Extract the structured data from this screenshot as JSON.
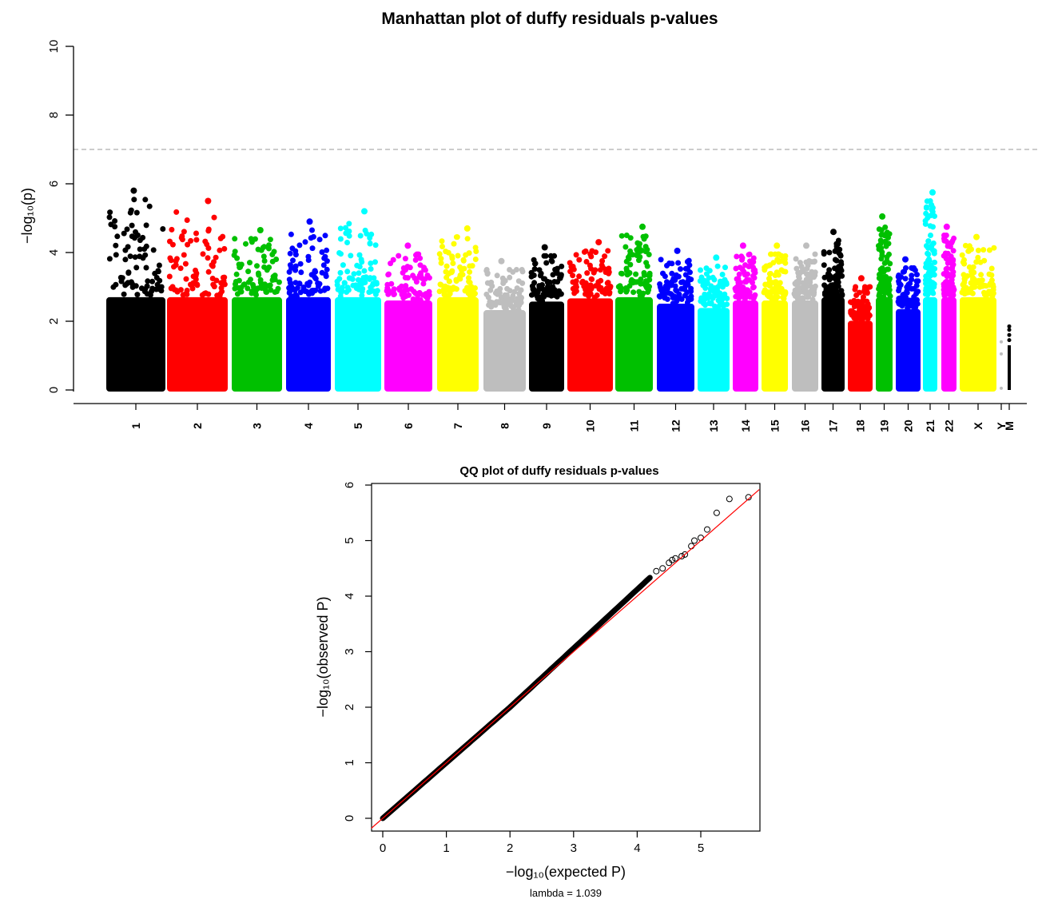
{
  "chart_data": [
    {
      "type": "scatter",
      "title": "Manhattan plot of duffy residuals p-values",
      "ylabel": "−log₁₀(p)",
      "ylim": [
        0,
        10
      ],
      "yticks": [
        "0",
        "2",
        "4",
        "6",
        "8",
        "10"
      ],
      "threshold": 7,
      "threshold_style": "dashed grey",
      "chromosomes": [
        {
          "label": "1",
          "color": "#000000",
          "max": 5.8
        },
        {
          "label": "2",
          "color": "#ff0000",
          "max": 5.5
        },
        {
          "label": "3",
          "color": "#00c000",
          "max": 4.65
        },
        {
          "label": "4",
          "color": "#0000ff",
          "max": 4.9
        },
        {
          "label": "5",
          "color": "#00ffff",
          "max": 5.2
        },
        {
          "label": "6",
          "color": "#ff00ff",
          "max": 4.2
        },
        {
          "label": "7",
          "color": "#ffff00",
          "max": 4.7
        },
        {
          "label": "8",
          "color": "#bebebe",
          "max": 3.75
        },
        {
          "label": "9",
          "color": "#000000",
          "max": 4.15
        },
        {
          "label": "10",
          "color": "#ff0000",
          "max": 4.3
        },
        {
          "label": "11",
          "color": "#00c000",
          "max": 4.75
        },
        {
          "label": "12",
          "color": "#0000ff",
          "max": 4.05
        },
        {
          "label": "13",
          "color": "#00ffff",
          "max": 3.85
        },
        {
          "label": "14",
          "color": "#ff00ff",
          "max": 4.2
        },
        {
          "label": "15",
          "color": "#ffff00",
          "max": 4.2
        },
        {
          "label": "16",
          "color": "#bebebe",
          "max": 4.2
        },
        {
          "label": "17",
          "color": "#000000",
          "max": 4.6
        },
        {
          "label": "18",
          "color": "#ff0000",
          "max": 3.25
        },
        {
          "label": "19",
          "color": "#00c000",
          "max": 5.05
        },
        {
          "label": "20",
          "color": "#0000ff",
          "max": 3.8
        },
        {
          "label": "21",
          "color": "#00ffff",
          "max": 5.75
        },
        {
          "label": "22",
          "color": "#ff00ff",
          "max": 4.75
        },
        {
          "label": "X",
          "color": "#ffff00",
          "max": 4.45
        },
        {
          "label": "Y",
          "color": "#bebebe",
          "max": 1.4
        },
        {
          "label": "M",
          "color": "#000000",
          "max": 1.85
        }
      ]
    },
    {
      "type": "scatter",
      "title": "QQ plot of duffy residuals p-values",
      "xlabel": "−log₁₀(expected P)",
      "ylabel": "−log₁₀(observed P)",
      "subtitle": "lambda = 1.039",
      "xlim": [
        0,
        5.9
      ],
      "ylim": [
        0,
        6
      ],
      "xticks": [
        "0",
        "1",
        "2",
        "3",
        "4",
        "5"
      ],
      "yticks": [
        "0",
        "1",
        "2",
        "3",
        "4",
        "5",
        "6"
      ],
      "reference_line_color": "#ff0000",
      "tail_points": [
        [
          4.3,
          4.45
        ],
        [
          4.4,
          4.5
        ],
        [
          4.5,
          4.6
        ],
        [
          4.55,
          4.65
        ],
        [
          4.6,
          4.68
        ],
        [
          4.7,
          4.72
        ],
        [
          4.75,
          4.75
        ],
        [
          4.85,
          4.9
        ],
        [
          4.9,
          5.0
        ],
        [
          5.0,
          5.05
        ],
        [
          5.1,
          5.2
        ],
        [
          5.25,
          5.5
        ],
        [
          5.45,
          5.75
        ],
        [
          5.75,
          5.78
        ]
      ]
    }
  ]
}
